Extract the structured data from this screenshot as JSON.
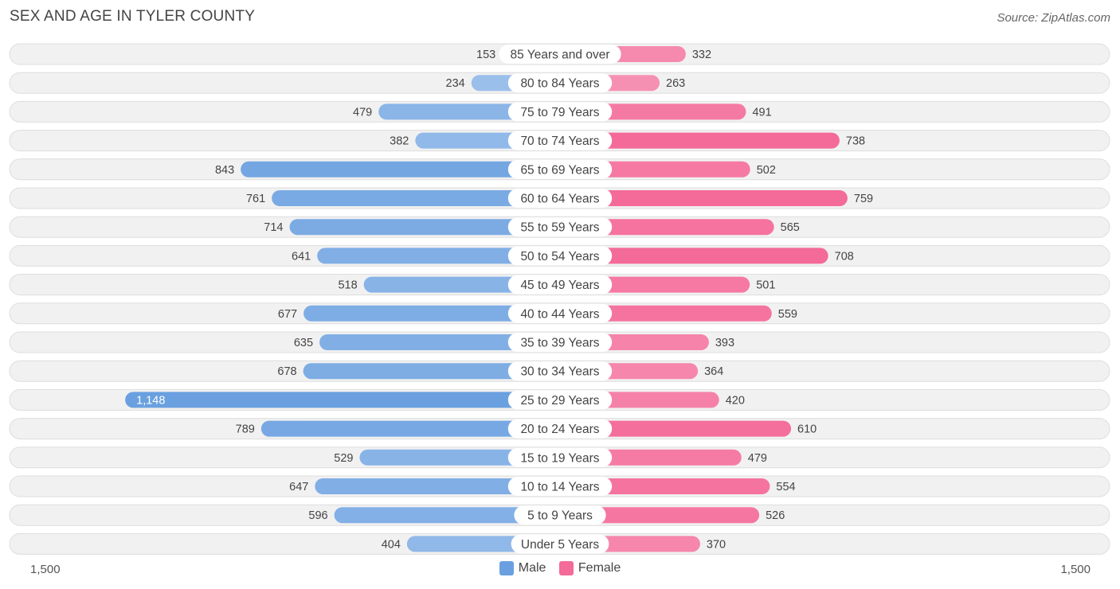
{
  "title": "SEX AND AGE IN TYLER COUNTY",
  "source": "Source: ZipAtlas.com",
  "colors": {
    "male": "#6aa0e0",
    "male_light": "#a9c8ee",
    "female": "#f46a98",
    "female_light": "#f8a9c4",
    "row_bg": "#f1f1f1",
    "row_border": "#dedede"
  },
  "chart_data": {
    "type": "bar",
    "orientation": "horizontal-butterfly",
    "categories": [
      "85 Years and over",
      "80 to 84 Years",
      "75 to 79 Years",
      "70 to 74 Years",
      "65 to 69 Years",
      "60 to 64 Years",
      "55 to 59 Years",
      "50 to 54 Years",
      "45 to 49 Years",
      "40 to 44 Years",
      "35 to 39 Years",
      "30 to 34 Years",
      "25 to 29 Years",
      "20 to 24 Years",
      "15 to 19 Years",
      "10 to 14 Years",
      "5 to 9 Years",
      "Under 5 Years"
    ],
    "series": [
      {
        "name": "Male",
        "values": [
          153,
          234,
          479,
          382,
          843,
          761,
          714,
          641,
          518,
          677,
          635,
          678,
          1148,
          789,
          529,
          647,
          596,
          404
        ]
      },
      {
        "name": "Female",
        "values": [
          332,
          263,
          491,
          738,
          502,
          759,
          565,
          708,
          501,
          559,
          393,
          364,
          420,
          610,
          479,
          554,
          526,
          370
        ]
      }
    ],
    "value_labels": {
      "male": [
        "153",
        "234",
        "479",
        "382",
        "843",
        "761",
        "714",
        "641",
        "518",
        "677",
        "635",
        "678",
        "1,148",
        "789",
        "529",
        "647",
        "596",
        "404"
      ],
      "female": [
        "332",
        "263",
        "491",
        "738",
        "502",
        "759",
        "565",
        "708",
        "501",
        "559",
        "393",
        "364",
        "420",
        "610",
        "479",
        "554",
        "526",
        "370"
      ]
    },
    "axis_max": 1500,
    "axis_left_label": "1,500",
    "axis_right_label": "1,500",
    "legend_placement": "bottom-center"
  }
}
